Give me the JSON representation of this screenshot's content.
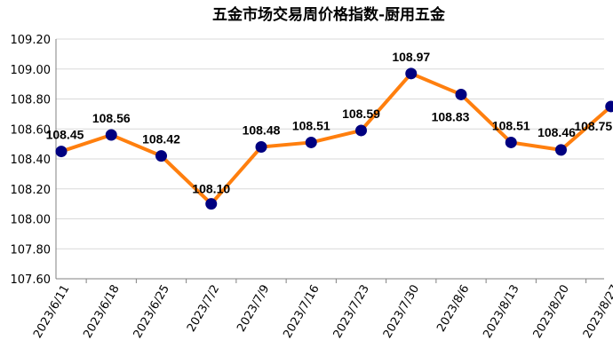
{
  "chart_data": {
    "type": "line",
    "title": "五金市场交易周价格指数-厨用五金",
    "categories": [
      "2023/6/11",
      "2023/6/18",
      "2023/6/25",
      "2023/7/2",
      "2023/7/9",
      "2023/7/16",
      "2023/7/23",
      "2023/7/30",
      "2023/8/6",
      "2023/8/13",
      "2023/8/20",
      "2023/8/27"
    ],
    "values": [
      108.45,
      108.56,
      108.42,
      108.1,
      108.48,
      108.51,
      108.59,
      108.97,
      108.83,
      108.51,
      108.46,
      108.75
    ],
    "value_labels": [
      "108.45",
      "108.56",
      "108.42",
      "108.10",
      "108.48",
      "108.51",
      "108.59",
      "108.97",
      "108.83",
      "108.51",
      "108.46",
      "108.75"
    ],
    "ylim": [
      107.6,
      109.2
    ],
    "y_ticks": [
      107.6,
      107.8,
      108.0,
      108.2,
      108.4,
      108.6,
      108.8,
      109.0,
      109.2
    ],
    "y_tick_labels": [
      "107.60",
      "107.80",
      "108.00",
      "108.20",
      "108.40",
      "108.60",
      "108.80",
      "109.00",
      "109.20"
    ],
    "grid": true,
    "legend": "none",
    "colors": {
      "line": "#FF7F0E",
      "marker": "#000080",
      "grid": "#D9D9D9",
      "axis": "#808080"
    }
  }
}
